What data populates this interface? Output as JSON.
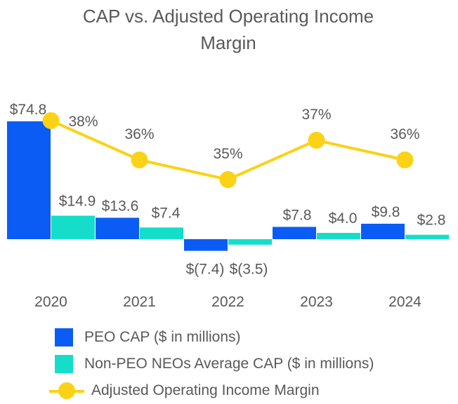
{
  "chart_data": {
    "type": "bar+line",
    "title": "CAP vs. Adjusted Operating Income Margin",
    "title_lines": [
      "CAP vs. Adjusted Operating Income",
      "Margin"
    ],
    "categories": [
      "2020",
      "2021",
      "2022",
      "2023",
      "2024"
    ],
    "series": [
      {
        "name": "PEO CAP ($ in millions)",
        "type": "bar",
        "color": "#0A5CF5",
        "values": [
          74.8,
          13.6,
          -7.4,
          7.8,
          9.8
        ],
        "labels": [
          "$74.8",
          "$13.6",
          "$(7.4)",
          "$7.8",
          "$9.8"
        ]
      },
      {
        "name": "Non-PEO NEOs Average CAP ($ in millions)",
        "type": "bar",
        "color": "#14DEC9",
        "values": [
          14.9,
          7.4,
          -3.5,
          4.0,
          2.8
        ],
        "labels": [
          "$14.9",
          "$7.4",
          "$(3.5)",
          "$4.0",
          "$2.8"
        ]
      },
      {
        "name": "Adjusted Operating Income Margin",
        "type": "line",
        "color": "#FBD216",
        "values": [
          38,
          36,
          35,
          37,
          36
        ],
        "labels": [
          "38%",
          "36%",
          "35%",
          "37%",
          "36%"
        ]
      }
    ],
    "bar_axis": {
      "ylim": [
        -7.4,
        74.8
      ]
    },
    "line_axis": {
      "ylim": [
        34.2,
        38
      ]
    },
    "grid": false,
    "legend_position": "bottom-left"
  }
}
